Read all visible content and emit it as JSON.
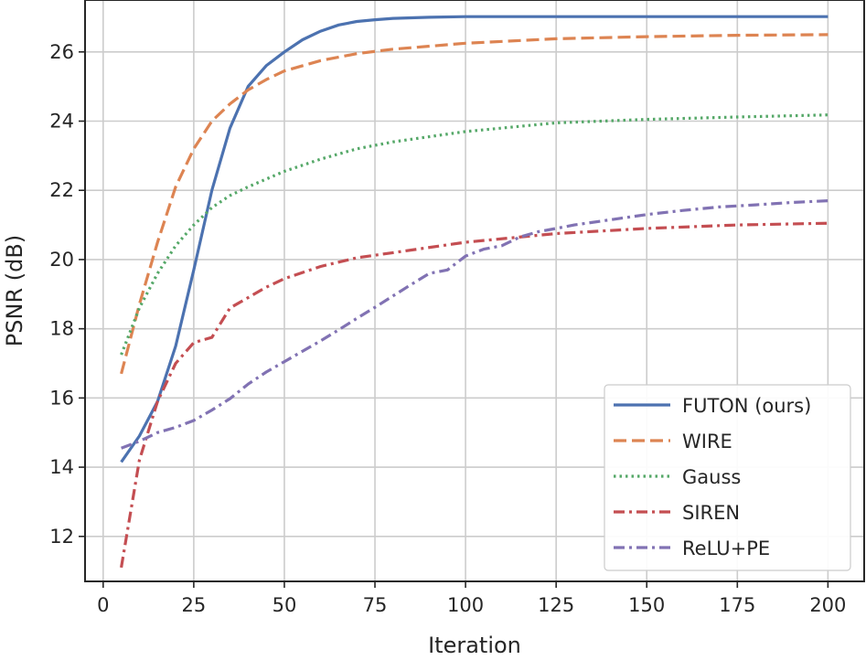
{
  "chart_data": {
    "type": "line",
    "xlabel": "Iteration",
    "ylabel": "PSNR (dB)",
    "xlim": [
      -5,
      210
    ],
    "ylim": [
      10.7,
      27.5
    ],
    "xticks": [
      0,
      25,
      50,
      75,
      100,
      125,
      150,
      175,
      200
    ],
    "yticks": [
      12,
      14,
      16,
      18,
      20,
      22,
      24,
      26
    ],
    "grid": true,
    "legend_position": "bottom-right",
    "series": [
      {
        "name": "FUTON (ours)",
        "color": "#4c72b0",
        "dash": "solid",
        "x": [
          5,
          10,
          15,
          20,
          25,
          30,
          35,
          40,
          45,
          50,
          55,
          60,
          65,
          70,
          75,
          80,
          90,
          100,
          125,
          150,
          175,
          200
        ],
        "y": [
          14.15,
          14.9,
          15.9,
          17.5,
          19.7,
          22.0,
          23.8,
          25.0,
          25.6,
          26.0,
          26.35,
          26.6,
          26.78,
          26.88,
          26.93,
          26.97,
          27.0,
          27.02,
          27.02,
          27.02,
          27.02,
          27.02
        ]
      },
      {
        "name": "WIRE",
        "color": "#dd8452",
        "dash": "long-dash",
        "x": [
          5,
          10,
          15,
          20,
          25,
          30,
          35,
          40,
          45,
          50,
          60,
          70,
          80,
          100,
          125,
          150,
          175,
          200
        ],
        "y": [
          16.7,
          18.7,
          20.5,
          22.1,
          23.2,
          24.0,
          24.5,
          24.9,
          25.2,
          25.45,
          25.75,
          25.95,
          26.08,
          26.25,
          26.38,
          26.44,
          26.48,
          26.5
        ]
      },
      {
        "name": "Gauss",
        "color": "#55a868",
        "dash": "dotted",
        "x": [
          5,
          10,
          15,
          20,
          25,
          30,
          35,
          40,
          50,
          60,
          70,
          80,
          100,
          125,
          150,
          175,
          200
        ],
        "y": [
          17.25,
          18.6,
          19.6,
          20.4,
          21.0,
          21.5,
          21.85,
          22.1,
          22.55,
          22.9,
          23.2,
          23.4,
          23.7,
          23.95,
          24.05,
          24.12,
          24.18
        ]
      },
      {
        "name": "SIREN",
        "color": "#c44e52",
        "dash": "dash-dot",
        "x": [
          5,
          10,
          15,
          20,
          25,
          30,
          35,
          40,
          45,
          50,
          60,
          70,
          80,
          100,
          125,
          150,
          175,
          200
        ],
        "y": [
          11.1,
          14.2,
          15.9,
          17.0,
          17.6,
          17.75,
          18.6,
          18.9,
          19.2,
          19.45,
          19.8,
          20.05,
          20.2,
          20.5,
          20.75,
          20.9,
          21.0,
          21.05
        ]
      },
      {
        "name": "ReLU+PE",
        "color": "#8172b3",
        "dash": "dash-dot",
        "x": [
          5,
          10,
          15,
          20,
          25,
          30,
          35,
          40,
          45,
          50,
          55,
          60,
          65,
          70,
          75,
          80,
          85,
          90,
          95,
          100,
          105,
          110,
          115,
          120,
          125,
          130,
          140,
          150,
          160,
          170,
          180,
          190,
          200
        ],
        "y": [
          14.55,
          14.75,
          15.0,
          15.15,
          15.35,
          15.65,
          15.98,
          16.4,
          16.75,
          17.05,
          17.35,
          17.65,
          17.97,
          18.3,
          18.62,
          18.95,
          19.28,
          19.6,
          19.7,
          20.1,
          20.3,
          20.4,
          20.65,
          20.8,
          20.9,
          21.0,
          21.15,
          21.3,
          21.42,
          21.52,
          21.58,
          21.65,
          21.7
        ]
      }
    ]
  }
}
